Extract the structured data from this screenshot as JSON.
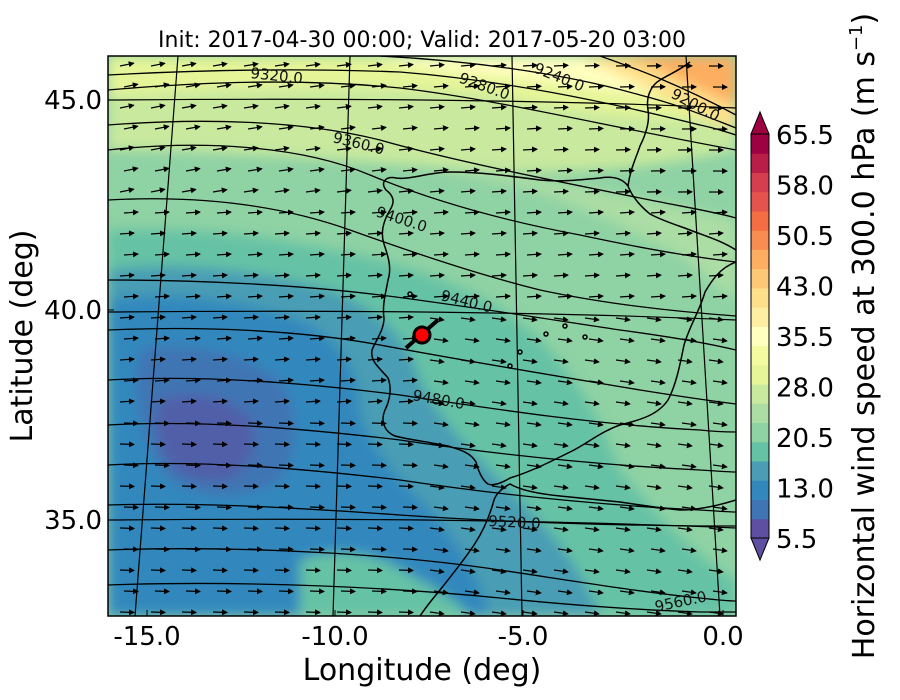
{
  "title": "Init: 2017-04-30 00:00; Valid: 2017-05-20 03:00",
  "x_axis": {
    "label": "Longitude (deg)",
    "ticks": [
      {
        "value": -15.0,
        "label": "-15.0"
      },
      {
        "value": -10.0,
        "label": "-10.0"
      },
      {
        "value": -5.0,
        "label": "-5.0"
      },
      {
        "value": 0.0,
        "label": "0.0"
      }
    ]
  },
  "y_axis": {
    "label": "Latitude (deg)",
    "ticks": [
      {
        "value": 35.0,
        "label": "35.0"
      },
      {
        "value": 40.0,
        "label": "40.0"
      },
      {
        "value": 45.0,
        "label": "45.0"
      }
    ]
  },
  "colorbar": {
    "label": "Horizontal wind speed at 300.0 hPa (m s",
    "label_sup": "−1",
    "label_end": ")",
    "ticks": [
      "65.5",
      "58.0",
      "50.5",
      "43.0",
      "35.5",
      "28.0",
      "20.5",
      "13.0",
      "5.5"
    ],
    "colors": [
      "#5e4fa2",
      "#3f75b4",
      "#3288bd",
      "#4a9db4",
      "#66c2a5",
      "#8fd2a4",
      "#abdda4",
      "#c8e99e",
      "#e6f598",
      "#f4fa9f",
      "#ffffbf",
      "#feeea1",
      "#fee08b",
      "#fdc875",
      "#fdae61",
      "#f88d52",
      "#f46d43",
      "#e4534d",
      "#d53e4f",
      "#b81e48",
      "#9e0142"
    ],
    "extend": "both"
  },
  "contours": [
    {
      "label": "9200.0"
    },
    {
      "label": "9240.0"
    },
    {
      "label": "9280.0"
    },
    {
      "label": "9320.0"
    },
    {
      "label": "9360.0"
    },
    {
      "label": "9400.0"
    },
    {
      "label": "9440.0"
    },
    {
      "label": "9480.0"
    },
    {
      "label": "9520.0"
    },
    {
      "label": "9560.0"
    }
  ],
  "marker": {
    "lon": -7.6,
    "lat": 39.4,
    "color": "#ff0000",
    "symbol": "circle"
  },
  "wind_direction": "west-to-east (from west/southwest)",
  "map_region": "Iberian Peninsula and eastern Atlantic"
}
